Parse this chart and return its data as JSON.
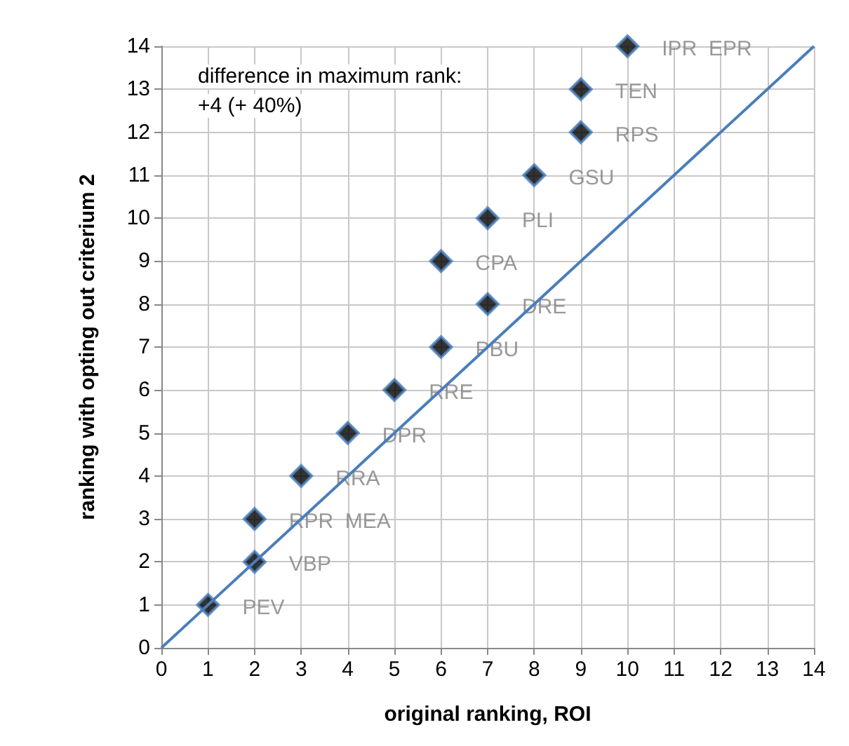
{
  "chart_data": {
    "type": "scatter",
    "xlabel": "original ranking, ROI",
    "ylabel": "ranking with opting out criterium 2",
    "annotations": [
      "difference in maximum rank:",
      "+4 (+ 40%)"
    ],
    "series": [
      {
        "color": "#000000",
        "marker": "diamond",
        "x": [
          1,
          2,
          2,
          3,
          4,
          5,
          6,
          7,
          6,
          7,
          8,
          9,
          9,
          10
        ],
        "values": [
          1,
          2,
          3,
          4,
          5,
          6,
          7,
          8,
          9,
          10,
          11,
          12,
          13,
          14
        ],
        "value_labels": [
          "PEV",
          "VBP",
          "RPR  MEA",
          "RRA",
          "DPR",
          "RRE",
          "PBU",
          "DRE",
          "CPA",
          "PLI",
          "GSU",
          "RPS",
          "TEN",
          "IPR  EPR"
        ]
      },
      {
        "type": "line",
        "color": "#4a7ebb",
        "marker": "none",
        "x": [
          0,
          14
        ],
        "values": [
          0,
          14
        ]
      }
    ],
    "xlim": [
      0,
      14
    ],
    "xticks": [
      0,
      1,
      2,
      3,
      4,
      5,
      6,
      7,
      8,
      9,
      10,
      11,
      12,
      13,
      14
    ],
    "ylim": [
      0,
      14
    ],
    "yticks": [
      0,
      1,
      2,
      3,
      4,
      5,
      6,
      7,
      8,
      9,
      10,
      11,
      12,
      13,
      14
    ],
    "grid": true
  }
}
